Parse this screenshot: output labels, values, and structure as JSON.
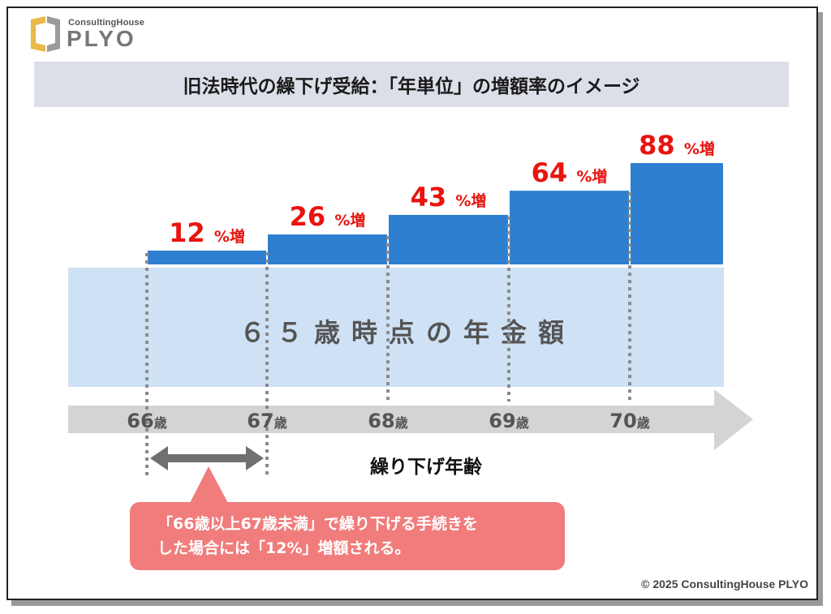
{
  "brand": {
    "small": "ConsultingHouse",
    "big": "PLYO"
  },
  "title": "旧法時代の繰下げ受給：「年単位」の増額率のイメージ",
  "chart_data": {
    "type": "bar",
    "categories": [
      "66歳",
      "67歳",
      "68歳",
      "69歳",
      "70歳"
    ],
    "values": [
      12,
      26,
      43,
      64,
      88
    ],
    "value_suffix": "%増",
    "base_label": "６５歳時点の年金額",
    "xlabel": "繰り下げ年齢",
    "ticks": [
      {
        "num": "66",
        "unit": "歳"
      },
      {
        "num": "67",
        "unit": "歳"
      },
      {
        "num": "68",
        "unit": "歳"
      },
      {
        "num": "69",
        "unit": "歳"
      },
      {
        "num": "70",
        "unit": "歳"
      }
    ],
    "colors": {
      "bar": "#2e7fd0",
      "base": "#cfe1f4",
      "label": "#e8140f",
      "axis": "#d4d4d4",
      "dotted": "#8a8a8a"
    }
  },
  "callout": {
    "line1": "「66歳以上67歳未満」で繰り下げる手続きを",
    "line2": "した場合には「12%」増額される。",
    "color": "#f07c7c"
  },
  "copyright": "© 2025 ConsultingHouse PLYO"
}
